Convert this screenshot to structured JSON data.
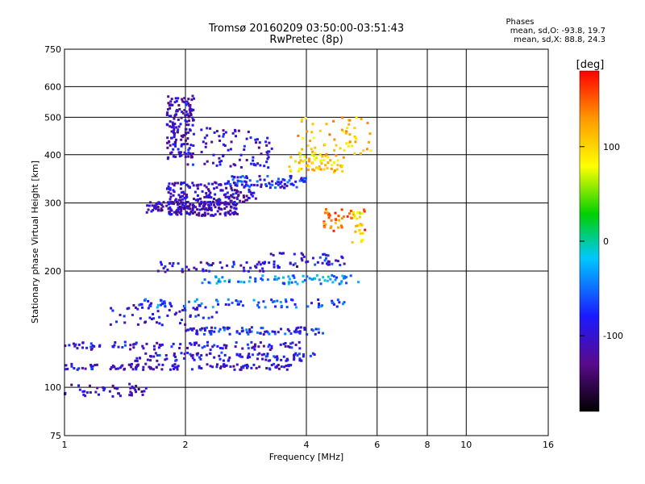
{
  "chart_data": {
    "type": "scatter",
    "title": "Tromsø 20160209 03:50:00-03:51:43",
    "subtitle": "RwPretec (8p)",
    "xlabel": "Frequency [MHz]",
    "ylabel": "Stationary phase Virtual Height [km]",
    "x_scale": "log",
    "y_scale": "log",
    "xlim": [
      1,
      16
    ],
    "ylim": [
      75,
      750
    ],
    "x_ticks": [
      1,
      2,
      4,
      6,
      8,
      10,
      16
    ],
    "y_ticks": [
      75,
      100,
      200,
      300,
      400,
      500,
      600,
      750
    ],
    "grid_x": [
      2,
      4,
      6,
      8,
      10
    ],
    "grid_y": [
      100,
      200,
      300,
      400,
      500,
      600
    ],
    "phase_info": {
      "title": "Phases",
      "line_o": "mean, sd,O:  -93.8, 19.7",
      "line_x": "mean, sd,X:  88.8, 24.3"
    },
    "colorbar": {
      "label": "[deg]",
      "range": [
        -180,
        180
      ],
      "ticks": [
        100,
        0,
        -100
      ],
      "colors": [
        "#000000",
        "#5a0a8c",
        "#1a1aff",
        "#00c8ff",
        "#00d000",
        "#ffff00",
        "#ff9900",
        "#ff0000"
      ]
    },
    "traces": [
      {
        "f_range": [
          1.0,
          1.6
        ],
        "h": 98,
        "scatter_h": 4,
        "phase": -110,
        "n": 45
      },
      {
        "f_range": [
          1.0,
          3.7
        ],
        "h": 113,
        "scatter_h": 2,
        "phase": -100,
        "n": 120
      },
      {
        "f_range": [
          1.5,
          4.2
        ],
        "h": 120,
        "scatter_h": 3,
        "phase": -90,
        "n": 100
      },
      {
        "f_range": [
          1.0,
          4.0
        ],
        "h": 128,
        "scatter_h": 3,
        "phase": -95,
        "n": 100
      },
      {
        "f_range": [
          2.0,
          4.4
        ],
        "h": 140,
        "scatter_h": 3,
        "phase": -80,
        "n": 90
      },
      {
        "f_range": [
          1.3,
          2.4
        ],
        "h": 155,
        "scatter_h": 10,
        "phase": -95,
        "n": 60
      },
      {
        "f_range": [
          1.5,
          5.0
        ],
        "h": 165,
        "scatter_h": 4,
        "phase": -60,
        "n": 80
      },
      {
        "f_range": [
          2.2,
          5.5
        ],
        "h": 190,
        "scatter_h": 5,
        "phase": -40,
        "n": 80
      },
      {
        "f_range": [
          1.7,
          3.8
        ],
        "h": 205,
        "scatter_h": 6,
        "phase": -100,
        "n": 60
      },
      {
        "f_range": [
          3.2,
          5.0
        ],
        "h": 215,
        "scatter_h": 8,
        "phase": -90,
        "n": 40
      },
      {
        "f_range": [
          1.6,
          2.7
        ],
        "h": 290,
        "scatter_h": 12,
        "phase": -110,
        "n": 200
      },
      {
        "f_range": [
          1.8,
          3.0
        ],
        "h": 320,
        "scatter_h": 20,
        "phase": -105,
        "n": 150
      },
      {
        "f_range": [
          2.5,
          4.0
        ],
        "h": 340,
        "scatter_h": 12,
        "phase": -80,
        "n": 80
      },
      {
        "f_range": [
          3.6,
          5.0
        ],
        "h": 380,
        "scatter_h": 20,
        "phase": 100,
        "n": 60
      },
      {
        "f_range": [
          3.8,
          5.8
        ],
        "h": 450,
        "scatter_h": 50,
        "phase": 110,
        "n": 60
      },
      {
        "f_range": [
          1.8,
          2.1
        ],
        "h": 480,
        "scatter_h": 90,
        "phase": -105,
        "n": 150
      },
      {
        "f_range": [
          2.0,
          3.3
        ],
        "h": 420,
        "scatter_h": 50,
        "phase": -100,
        "n": 90
      },
      {
        "f_range": [
          4.4,
          5.6
        ],
        "h": 270,
        "scatter_h": 20,
        "phase": 140,
        "n": 40
      },
      {
        "f_range": [
          5.2,
          5.6
        ],
        "h": 260,
        "scatter_h": 25,
        "phase": 90,
        "n": 20
      }
    ]
  }
}
